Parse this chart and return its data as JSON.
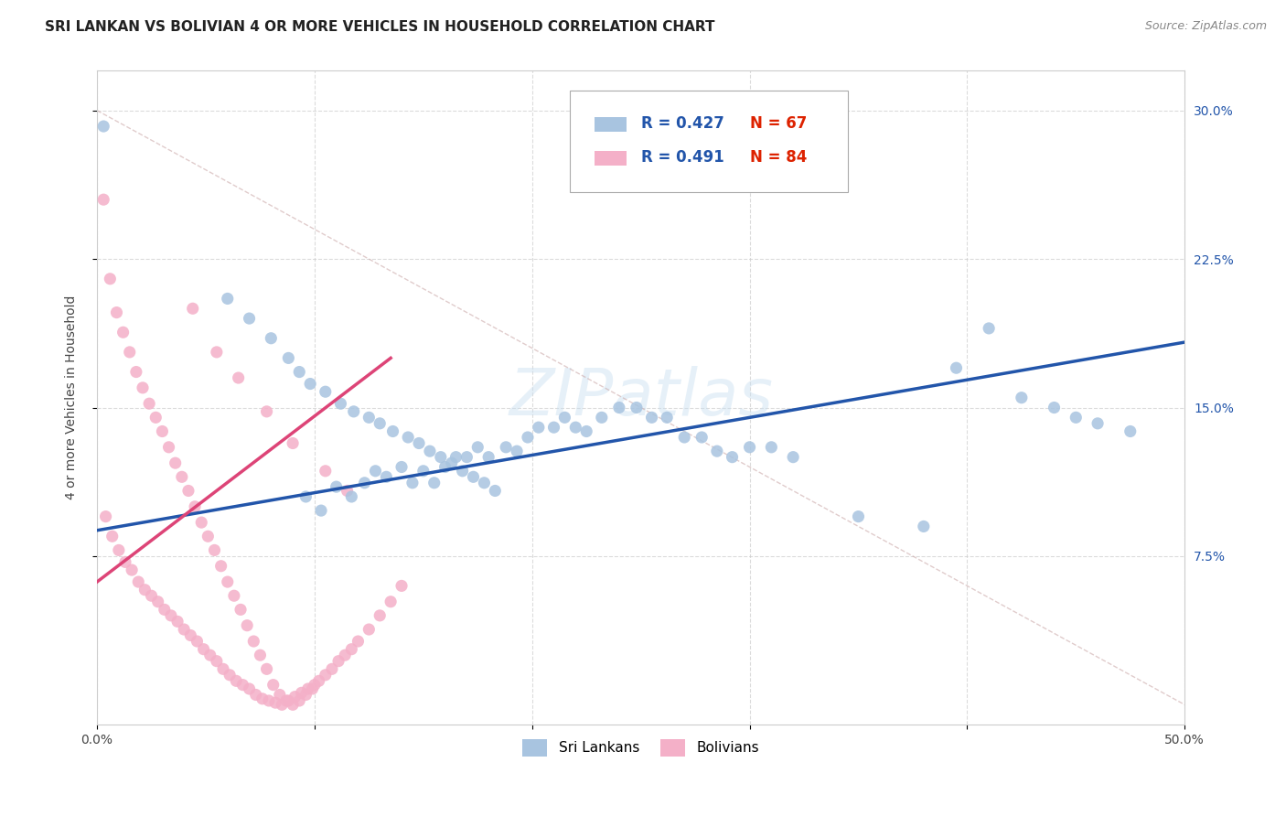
{
  "title": "SRI LANKAN VS BOLIVIAN 4 OR MORE VEHICLES IN HOUSEHOLD CORRELATION CHART",
  "source": "Source: ZipAtlas.com",
  "ylabel": "4 or more Vehicles in Household",
  "xlim": [
    0.0,
    0.5
  ],
  "ylim": [
    -0.01,
    0.32
  ],
  "xtick_positions": [
    0.0,
    0.1,
    0.2,
    0.3,
    0.4,
    0.5
  ],
  "xticklabels": [
    "0.0%",
    "",
    "",
    "",
    "",
    "50.0%"
  ],
  "ytick_positions": [
    0.075,
    0.15,
    0.225,
    0.3
  ],
  "yticklabels": [
    "7.5%",
    "15.0%",
    "22.5%",
    "30.0%"
  ],
  "watermark": "ZIPatlas",
  "legend_labels": [
    "Sri Lankans",
    "Bolivians"
  ],
  "sri_lankan_color": "#a8c4e0",
  "bolivian_color": "#f4b0c8",
  "sri_lankan_line_color": "#2255aa",
  "bolivian_line_color": "#dd4477",
  "N_color": "#dd2200",
  "R_color": "#2255aa",
  "R_sri_lankan": 0.427,
  "N_sri_lankan": 67,
  "R_bolivian": 0.491,
  "N_bolivian": 84,
  "sl_line": [
    0.0,
    0.088,
    0.5,
    0.183
  ],
  "bo_line": [
    0.0,
    0.062,
    0.135,
    0.175
  ],
  "diag_line": [
    0.0,
    0.3,
    0.5,
    0.0
  ],
  "background_color": "#ffffff",
  "grid_color": "#cccccc",
  "title_fontsize": 11,
  "axis_fontsize": 10,
  "tick_fontsize": 10,
  "sri_lankans_x": [
    0.003,
    0.096,
    0.103,
    0.11,
    0.117,
    0.123,
    0.128,
    0.133,
    0.14,
    0.145,
    0.15,
    0.155,
    0.16,
    0.165,
    0.17,
    0.175,
    0.18,
    0.188,
    0.193,
    0.198,
    0.203,
    0.21,
    0.215,
    0.22,
    0.225,
    0.232,
    0.24,
    0.248,
    0.255,
    0.262,
    0.27,
    0.278,
    0.285,
    0.292,
    0.3,
    0.31,
    0.32,
    0.06,
    0.07,
    0.08,
    0.088,
    0.093,
    0.098,
    0.105,
    0.112,
    0.118,
    0.125,
    0.13,
    0.136,
    0.143,
    0.148,
    0.153,
    0.158,
    0.163,
    0.168,
    0.173,
    0.178,
    0.183,
    0.35,
    0.38,
    0.395,
    0.41,
    0.425,
    0.44,
    0.45,
    0.46,
    0.475
  ],
  "sri_lankans_y": [
    0.292,
    0.105,
    0.098,
    0.11,
    0.105,
    0.112,
    0.118,
    0.115,
    0.12,
    0.112,
    0.118,
    0.112,
    0.12,
    0.125,
    0.125,
    0.13,
    0.125,
    0.13,
    0.128,
    0.135,
    0.14,
    0.14,
    0.145,
    0.14,
    0.138,
    0.145,
    0.15,
    0.15,
    0.145,
    0.145,
    0.135,
    0.135,
    0.128,
    0.125,
    0.13,
    0.13,
    0.125,
    0.205,
    0.195,
    0.185,
    0.175,
    0.168,
    0.162,
    0.158,
    0.152,
    0.148,
    0.145,
    0.142,
    0.138,
    0.135,
    0.132,
    0.128,
    0.125,
    0.122,
    0.118,
    0.115,
    0.112,
    0.108,
    0.095,
    0.09,
    0.17,
    0.19,
    0.155,
    0.15,
    0.145,
    0.142,
    0.138
  ],
  "bolivians_x": [
    0.004,
    0.007,
    0.01,
    0.013,
    0.016,
    0.019,
    0.022,
    0.025,
    0.028,
    0.031,
    0.034,
    0.037,
    0.04,
    0.043,
    0.046,
    0.049,
    0.052,
    0.055,
    0.058,
    0.061,
    0.064,
    0.067,
    0.07,
    0.073,
    0.076,
    0.079,
    0.082,
    0.085,
    0.088,
    0.091,
    0.094,
    0.097,
    0.1,
    0.003,
    0.006,
    0.009,
    0.012,
    0.015,
    0.018,
    0.021,
    0.024,
    0.027,
    0.03,
    0.033,
    0.036,
    0.039,
    0.042,
    0.045,
    0.048,
    0.051,
    0.054,
    0.057,
    0.06,
    0.063,
    0.066,
    0.069,
    0.072,
    0.075,
    0.078,
    0.081,
    0.084,
    0.087,
    0.09,
    0.093,
    0.096,
    0.099,
    0.102,
    0.105,
    0.108,
    0.111,
    0.114,
    0.117,
    0.12,
    0.125,
    0.13,
    0.135,
    0.14,
    0.044,
    0.055,
    0.065,
    0.078,
    0.09,
    0.105,
    0.115
  ],
  "bolivians_y": [
    0.095,
    0.085,
    0.078,
    0.072,
    0.068,
    0.062,
    0.058,
    0.055,
    0.052,
    0.048,
    0.045,
    0.042,
    0.038,
    0.035,
    0.032,
    0.028,
    0.025,
    0.022,
    0.018,
    0.015,
    0.012,
    0.01,
    0.008,
    0.005,
    0.003,
    0.002,
    0.001,
    0.0,
    0.002,
    0.004,
    0.006,
    0.008,
    0.01,
    0.255,
    0.215,
    0.198,
    0.188,
    0.178,
    0.168,
    0.16,
    0.152,
    0.145,
    0.138,
    0.13,
    0.122,
    0.115,
    0.108,
    0.1,
    0.092,
    0.085,
    0.078,
    0.07,
    0.062,
    0.055,
    0.048,
    0.04,
    0.032,
    0.025,
    0.018,
    0.01,
    0.005,
    0.002,
    0.0,
    0.002,
    0.005,
    0.008,
    0.012,
    0.015,
    0.018,
    0.022,
    0.025,
    0.028,
    0.032,
    0.038,
    0.045,
    0.052,
    0.06,
    0.2,
    0.178,
    0.165,
    0.148,
    0.132,
    0.118,
    0.108
  ]
}
